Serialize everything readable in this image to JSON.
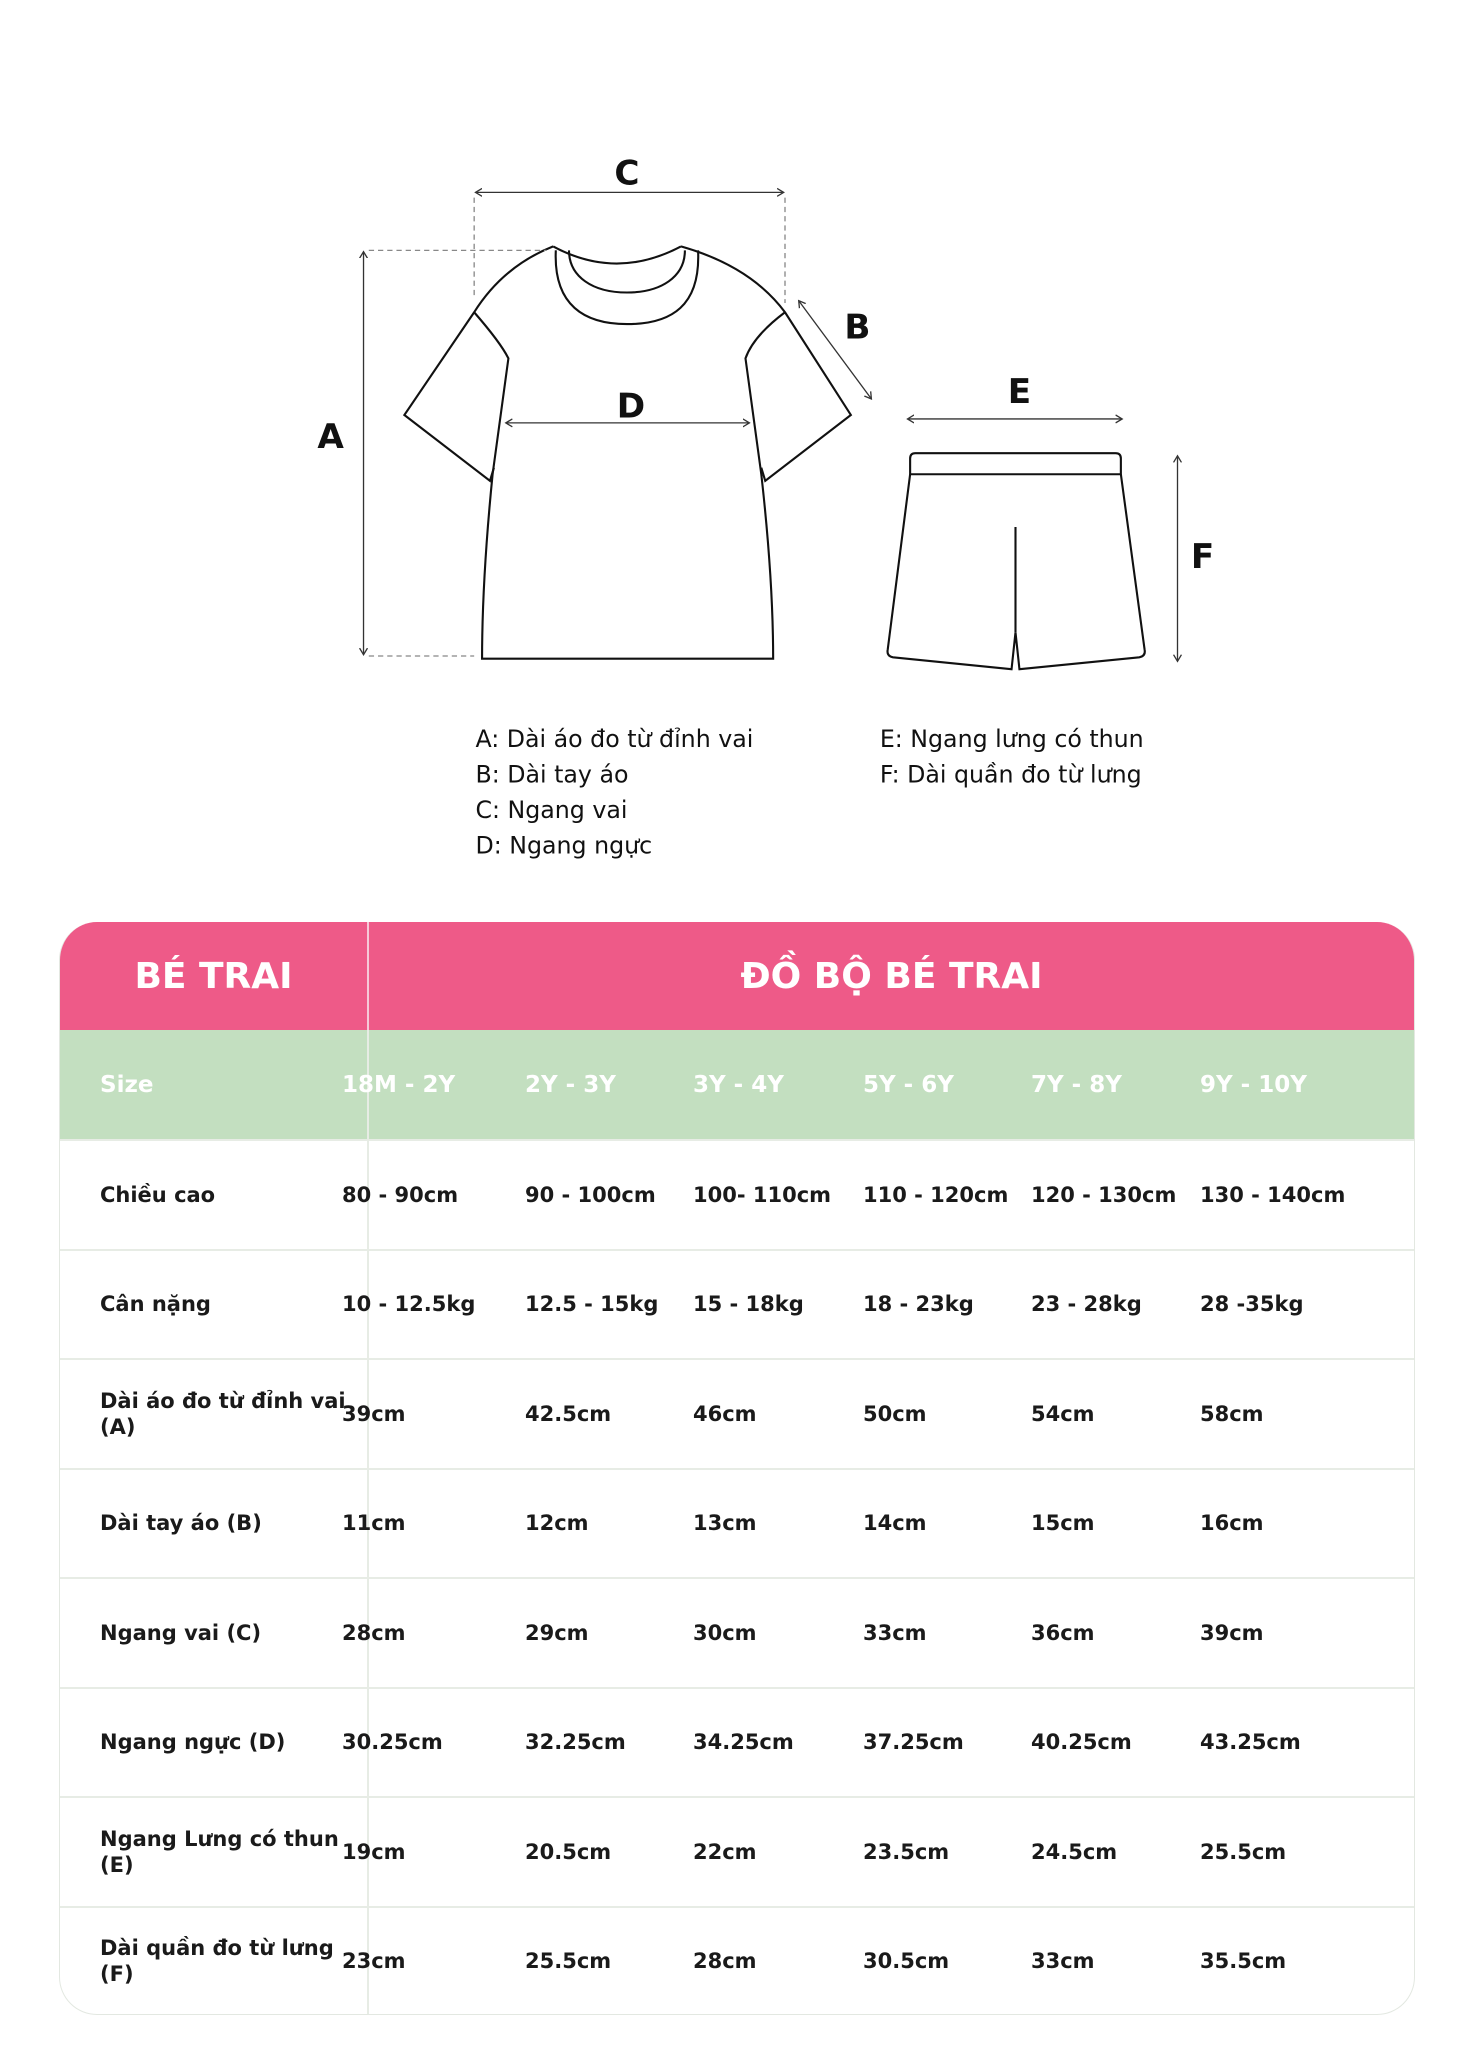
{
  "diagram": {
    "labels": {
      "a": "A",
      "b": "B",
      "c": "C",
      "d": "D",
      "e": "E",
      "f": "F"
    },
    "legend_left": [
      "A: Dài áo đo từ đỉnh vai",
      "B: Dài tay áo",
      "C: Ngang vai",
      "D: Ngang ngực"
    ],
    "legend_right": [
      "E: Ngang lưng có thun",
      "F: Dài quần đo từ lưng"
    ]
  },
  "table": {
    "colors": {
      "header": "#ee5a88",
      "size_row": "#c3dfc0"
    },
    "category": "BÉ TRAI",
    "title": "ĐỒ BỘ BÉ TRAI",
    "size_label": "Size",
    "sizes": [
      "18M - 2Y",
      "2Y - 3Y",
      "3Y - 4Y",
      "5Y - 6Y",
      "7Y - 8Y",
      "9Y - 10Y"
    ],
    "rows": [
      {
        "label": "Chiều cao",
        "values": [
          "80 - 90cm",
          "90 - 100cm",
          "100- 110cm",
          "110 - 120cm",
          "120 - 130cm",
          "130 - 140cm"
        ]
      },
      {
        "label": "Cân nặng",
        "values": [
          "10 - 12.5kg",
          "12.5 - 15kg",
          "15 - 18kg",
          "18 - 23kg",
          "23 - 28kg",
          "28 -35kg"
        ]
      },
      {
        "label": "Dài áo đo từ đỉnh vai (A)",
        "values": [
          "39cm",
          "42.5cm",
          "46cm",
          "50cm",
          "54cm",
          "58cm"
        ]
      },
      {
        "label": "Dài tay áo (B)",
        "values": [
          "11cm",
          "12cm",
          "13cm",
          "14cm",
          "15cm",
          "16cm"
        ]
      },
      {
        "label": "Ngang vai (C)",
        "values": [
          "28cm",
          "29cm",
          "30cm",
          "33cm",
          "36cm",
          "39cm"
        ]
      },
      {
        "label": "Ngang ngực (D)",
        "values": [
          "30.25cm",
          "32.25cm",
          "34.25cm",
          "37.25cm",
          "40.25cm",
          "43.25cm"
        ]
      },
      {
        "label": "Ngang Lưng có thun (E)",
        "values": [
          "19cm",
          "20.5cm",
          "22cm",
          "23.5cm",
          "24.5cm",
          "25.5cm"
        ]
      },
      {
        "label": "Dài quần đo từ lưng (F)",
        "values": [
          "23cm",
          "25.5cm",
          "28cm",
          "30.5cm",
          "33cm",
          "35.5cm"
        ]
      }
    ]
  }
}
